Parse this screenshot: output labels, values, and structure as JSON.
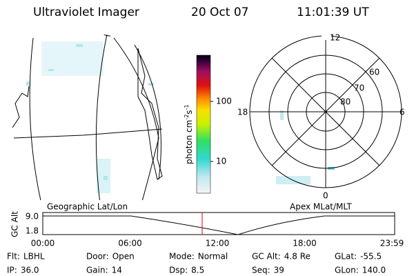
{
  "header": {
    "instrument": "Ultraviolet Imager",
    "date": "20 Oct 07",
    "time": "11:01:39 UT"
  },
  "map": {
    "label": "Geographic Lat/Lon"
  },
  "colorbar": {
    "unit": "photon cm",
    "exp1": "-2",
    "unit2": "s",
    "exp2": "-1",
    "ticks": [
      "100",
      "10"
    ]
  },
  "polar": {
    "label": "Apex MLat/MLT",
    "rings": [
      "60",
      "70",
      "80"
    ],
    "mlt": {
      "top": "12",
      "bottom": "0",
      "left": "18",
      "right": "6"
    }
  },
  "alt_plot": {
    "y_label": "GC Alt",
    "y_ticks": [
      "9.0",
      "1.8"
    ],
    "x_ticks": [
      "00:00",
      "06:00",
      "12:00",
      "18:00",
      "23:59"
    ]
  },
  "status": {
    "rows": [
      [
        {
          "label": "Flt:",
          "value": "LBHL"
        },
        {
          "label": "Door:",
          "value": "Open"
        },
        {
          "label": "Mode:",
          "value": "Normal"
        },
        {
          "label": "GC Alt:",
          "value": "4.8 Re"
        },
        {
          "label": "GLat:",
          "value": "-55.5"
        }
      ],
      [
        {
          "label": "IP:",
          "value": "36.0"
        },
        {
          "label": "Gain:",
          "value": "14"
        },
        {
          "label": "Dsp:",
          "value": "8.5"
        },
        {
          "label": "Seq:",
          "value": "39"
        },
        {
          "label": "GLon:",
          "value": "140.0"
        }
      ]
    ]
  }
}
